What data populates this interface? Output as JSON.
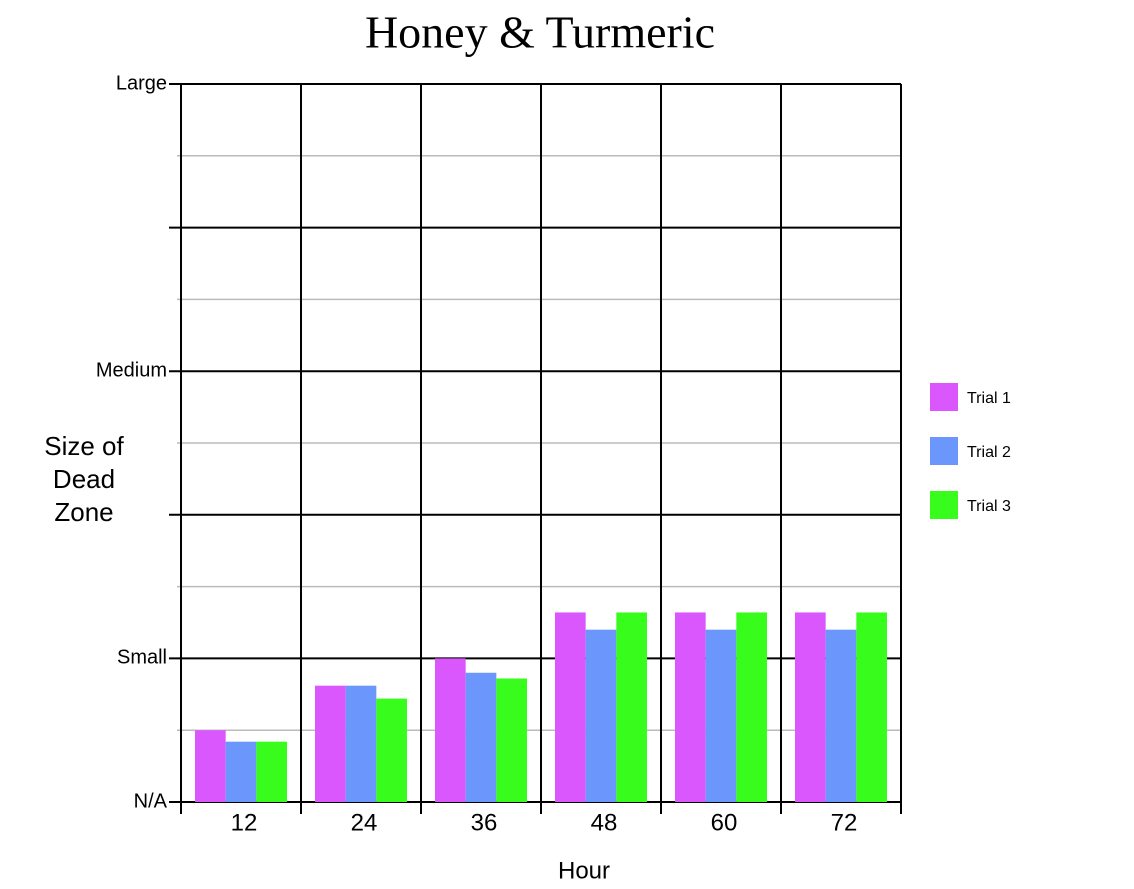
{
  "chart_data": {
    "type": "bar",
    "title": "Honey & Turmeric",
    "x_label": "Hour",
    "y_label": "Size of Dead Zone",
    "categories": [
      "12",
      "24",
      "36",
      "48",
      "60",
      "72"
    ],
    "series": [
      {
        "name": "Trial 1",
        "color": "#d957fc",
        "values": [
          0.5,
          0.81,
          1.0,
          1.32,
          1.32,
          1.32
        ]
      },
      {
        "name": "Trial 2",
        "color": "#6b96fc",
        "values": [
          0.42,
          0.81,
          0.9,
          1.2,
          1.2,
          1.2
        ]
      },
      {
        "name": "Trial 3",
        "color": "#38fc1c",
        "values": [
          0.42,
          0.72,
          0.86,
          1.32,
          1.32,
          1.32
        ]
      }
    ],
    "ylim": [
      0,
      5
    ],
    "yticks": [
      {
        "value": 0,
        "label": "N/A"
      },
      {
        "value": 1,
        "label": "Small"
      },
      {
        "value": 2,
        "label": null
      },
      {
        "value": 3,
        "label": "Medium"
      },
      {
        "value": 4,
        "label": null
      },
      {
        "value": 5,
        "label": "Large"
      }
    ],
    "yminor_ticks": [
      0.5,
      1.5,
      2.5,
      3.5,
      4.5
    ],
    "grid": true,
    "legend_position": "right"
  }
}
